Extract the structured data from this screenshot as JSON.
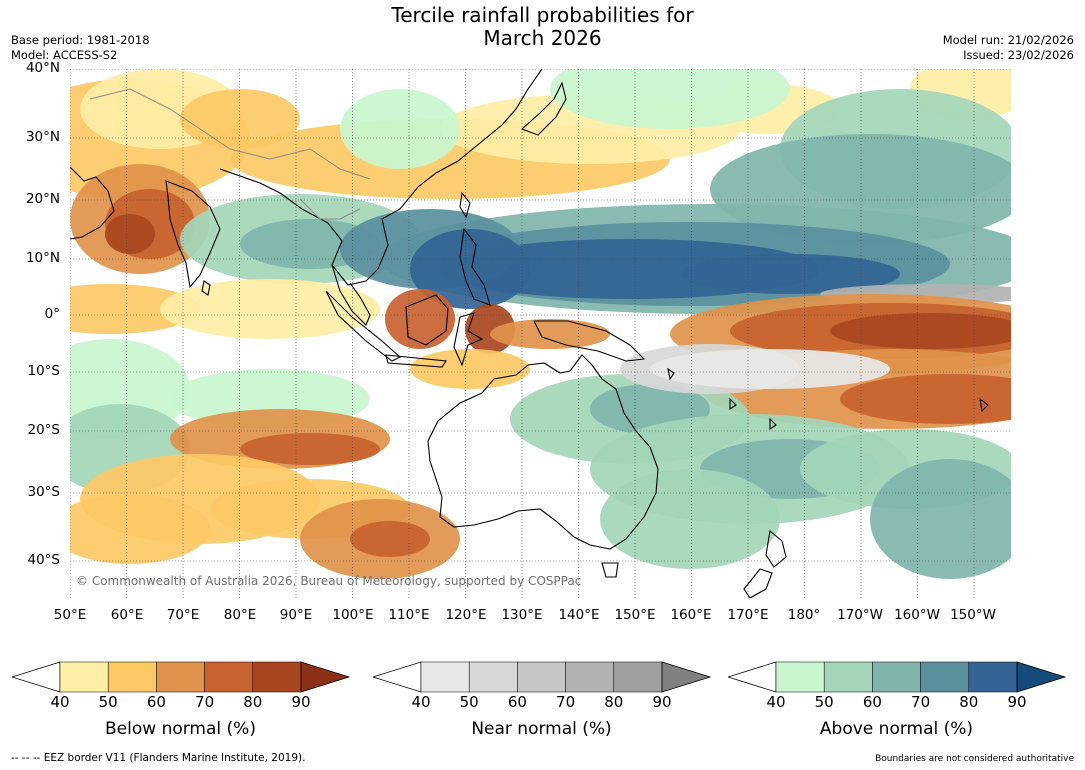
{
  "header": {
    "title_line1": "Tercile rainfall probabilities for",
    "title_line2": "March 2026",
    "base_period": "Base period: 1981-2018",
    "model": "Model: ACCESS-S2",
    "model_run": "Model run: 21/02/2026",
    "issued": "Issued: 23/02/2026"
  },
  "map": {
    "lat_labels": [
      "40°N",
      "30°N",
      "20°N",
      "10°N",
      "0°",
      "10°S",
      "20°S",
      "30°S",
      "40°S"
    ],
    "lon_labels": [
      "50°E",
      "60°E",
      "70°E",
      "80°E",
      "90°E",
      "100°E",
      "110°E",
      "120°E",
      "130°E",
      "140°E",
      "150°E",
      "160°E",
      "170°E",
      "180°",
      "170°W",
      "160°W",
      "150°W"
    ],
    "copyright": "© Commonwealth of Australia 2026, Bureau of Meteorology, supported by COSPPac"
  },
  "colorbars": [
    {
      "title": "Below normal (%)",
      "ticks": [
        "40",
        "50",
        "60",
        "70",
        "80",
        "90"
      ],
      "colors": [
        "#ffeea6",
        "#fdc965",
        "#e0934a",
        "#c8622f",
        "#a9461f"
      ],
      "extend_color": "#8c3018"
    },
    {
      "title": "Near normal (%)",
      "ticks": [
        "40",
        "50",
        "60",
        "70",
        "80",
        "90"
      ],
      "colors": [
        "#e8e8e8",
        "#d8d8d8",
        "#c6c6c6",
        "#b2b2b2",
        "#a0a0a0"
      ],
      "extend_color": "#808080"
    },
    {
      "title": "Above normal (%)",
      "ticks": [
        "40",
        "50",
        "60",
        "70",
        "80",
        "90"
      ],
      "colors": [
        "#c9f6cf",
        "#a3d6b8",
        "#80b5ad",
        "#5a8f9e",
        "#336494"
      ],
      "extend_color": "#154a7d"
    }
  ],
  "footer": {
    "eez_note": "--  --  -- EEZ border V11 (Flanders Marine Institute, 2019).",
    "boundary_note": "Boundaries are not considered authoritative"
  }
}
